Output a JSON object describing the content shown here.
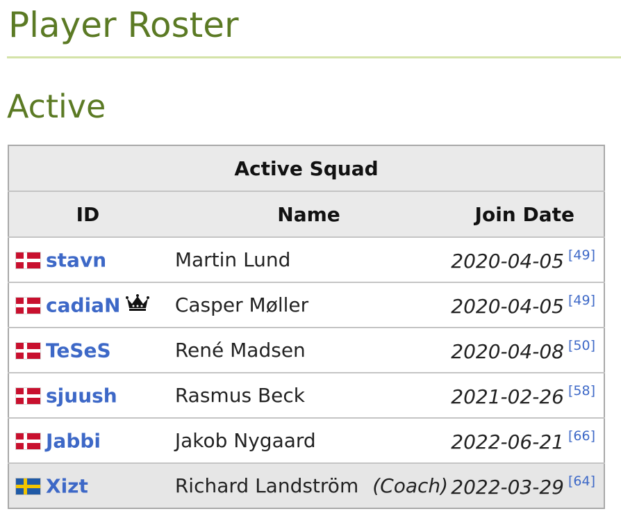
{
  "headings": {
    "page_title": "Player Roster",
    "section_title": "Active"
  },
  "table": {
    "caption": "Active Squad",
    "columns": {
      "id": "ID",
      "name": "Name",
      "join_date": "Join Date"
    },
    "rows": [
      {
        "flag": "denmark-flag-icon",
        "id": "stavn",
        "name": "Martin Lund",
        "role": "",
        "join_date": "2020-04-05",
        "ref": "[49]"
      },
      {
        "flag": "denmark-flag-icon",
        "id": "cadiaN",
        "captain_icon": "crown-icon",
        "name": "Casper Møller",
        "role": "",
        "join_date": "2020-04-05",
        "ref": "[49]"
      },
      {
        "flag": "denmark-flag-icon",
        "id": "TeSeS",
        "name": "René Madsen",
        "role": "",
        "join_date": "2020-04-08",
        "ref": "[50]"
      },
      {
        "flag": "denmark-flag-icon",
        "id": "sjuush",
        "name": "Rasmus Beck",
        "role": "",
        "join_date": "2021-02-26",
        "ref": "[58]"
      },
      {
        "flag": "denmark-flag-icon",
        "id": "Jabbi",
        "name": "Jakob Nygaard",
        "role": "",
        "join_date": "2022-06-21",
        "ref": "[66]"
      },
      {
        "flag": "sweden-flag-icon",
        "id": "Xizt",
        "name": "Richard Landström",
        "role": "(Coach)",
        "join_date": "2022-03-29",
        "ref": "[64]"
      }
    ]
  },
  "colors": {
    "heading": "#5b7a24",
    "heading_rule": "#d4e3a8",
    "link": "#3d68c7",
    "header_bg": "#eaeaea",
    "coach_row_bg": "#e6e6e6",
    "denmark_red": "#c8102e",
    "sweden_blue": "#1f5aa6",
    "sweden_yellow": "#f2c500"
  }
}
